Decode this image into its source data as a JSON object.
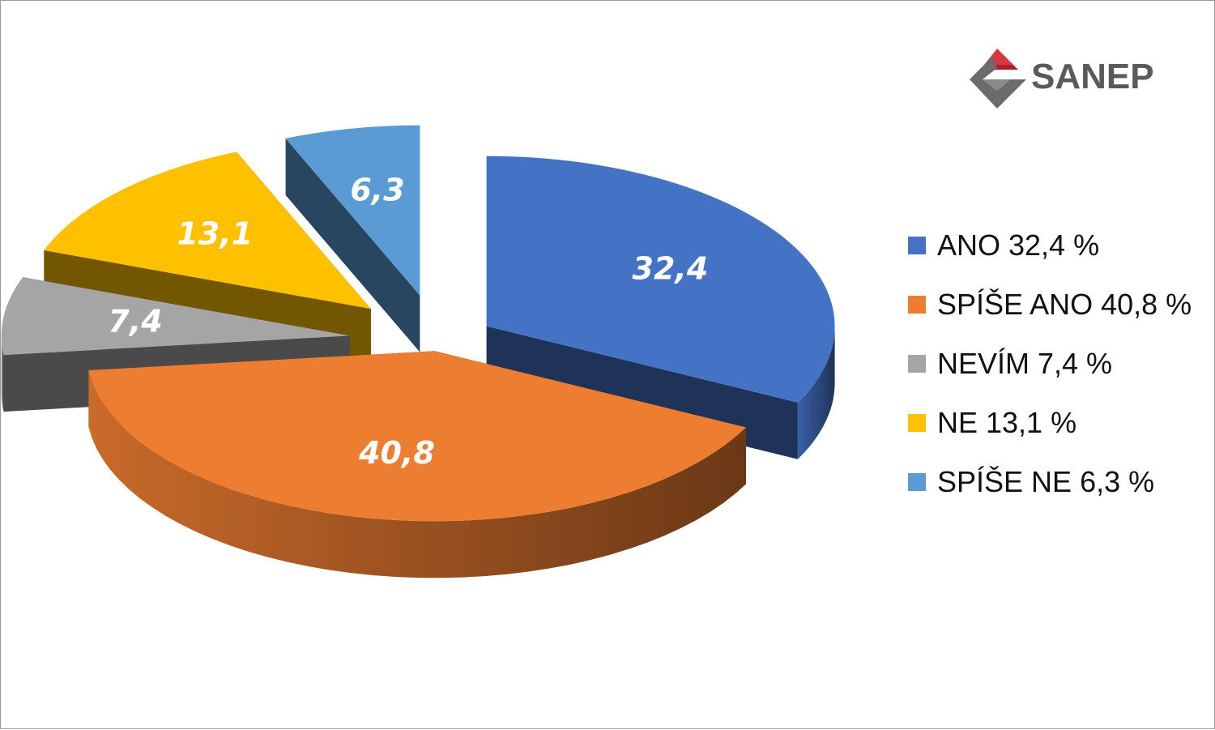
{
  "logo": {
    "text": "SANEP",
    "colors": {
      "red": "#b3202a",
      "gray": "#5a5a5a"
    }
  },
  "chart_data": {
    "type": "pie",
    "style": "3d-exploded",
    "legend_position": "right",
    "slices": [
      {
        "name": "ANO",
        "value": 32.4,
        "label": "32,4",
        "legend": "ANO 32,4 %",
        "color": "#4472c4"
      },
      {
        "name": "SPÍŠE ANO",
        "value": 40.8,
        "label": "40,8",
        "legend": "SPÍŠE ANO 40,8 %",
        "color": "#ed7d31"
      },
      {
        "name": "NEVÍM",
        "value": 7.4,
        "label": "7,4",
        "legend": "NEVÍM 7,4 %",
        "color": "#a5a5a5"
      },
      {
        "name": "NE",
        "value": 13.1,
        "label": "13,1",
        "legend": "NE 13,1 %",
        "color": "#ffc000"
      },
      {
        "name": "SPÍŠE NE",
        "value": 6.3,
        "label": "6,3",
        "legend": "SPÍŠE NE 6,3 %",
        "color": "#5b9bd5"
      }
    ]
  }
}
